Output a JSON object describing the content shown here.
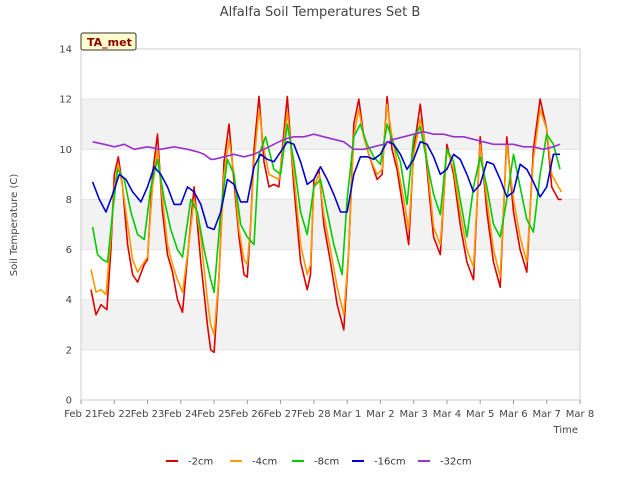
{
  "chart_data": {
    "type": "line",
    "title": "Alfalfa Soil Temperatures Set B",
    "xlabel": "Time",
    "ylabel": "Soil Temperature (C)",
    "badge": "TA_met",
    "ylim": [
      0,
      14
    ],
    "yticks": [
      0,
      2,
      4,
      6,
      8,
      10,
      12,
      14
    ],
    "xlim": [
      0,
      15
    ],
    "xticks": [
      {
        "day": 0,
        "label": "Feb 21"
      },
      {
        "day": 1,
        "label": "Feb 22"
      },
      {
        "day": 2,
        "label": "Feb 23"
      },
      {
        "day": 3,
        "label": "Feb 24"
      },
      {
        "day": 4,
        "label": "Feb 25"
      },
      {
        "day": 5,
        "label": "Feb 26"
      },
      {
        "day": 6,
        "label": "Feb 27"
      },
      {
        "day": 7,
        "label": "Feb 28"
      },
      {
        "day": 8,
        "label": "Mar 1"
      },
      {
        "day": 9,
        "label": "Mar 2"
      },
      {
        "day": 10,
        "label": "Mar 3"
      },
      {
        "day": 11,
        "label": "Mar 4"
      },
      {
        "day": 12,
        "label": "Mar 5"
      },
      {
        "day": 13,
        "label": "Mar 6"
      },
      {
        "day": 14,
        "label": "Mar 7"
      },
      {
        "day": 15,
        "label": "Mar 8"
      }
    ],
    "grid": true,
    "legend_position": "bottom",
    "series": [
      {
        "name": "-2cm",
        "color": "#dd0000",
        "x": [
          0.3,
          0.45,
          0.6,
          0.78,
          0.9,
          1.0,
          1.12,
          1.25,
          1.4,
          1.55,
          1.7,
          1.9,
          2.0,
          2.15,
          2.3,
          2.45,
          2.6,
          2.75,
          2.9,
          3.05,
          3.2,
          3.4,
          3.6,
          3.8,
          3.9,
          4.0,
          4.15,
          4.3,
          4.45,
          4.6,
          4.75,
          4.9,
          5.0,
          5.1,
          5.2,
          5.35,
          5.5,
          5.65,
          5.8,
          5.95,
          6.05,
          6.2,
          6.4,
          6.6,
          6.8,
          6.9,
          7.0,
          7.15,
          7.3,
          7.5,
          7.7,
          7.9,
          8.05,
          8.2,
          8.35,
          8.5,
          8.65,
          8.8,
          8.9,
          9.05,
          9.2,
          9.35,
          9.5,
          9.7,
          9.85,
          10.0,
          10.2,
          10.35,
          10.5,
          10.6,
          10.8,
          11.0,
          11.2,
          11.4,
          11.6,
          11.8,
          12.0,
          12.2,
          12.4,
          12.6,
          12.8,
          13.0,
          13.2,
          13.4,
          13.6,
          13.8,
          14.0,
          14.15,
          14.35,
          14.45
        ],
        "values": [
          4.4,
          3.4,
          3.8,
          3.6,
          6.0,
          9.0,
          9.7,
          8.5,
          6.2,
          5.0,
          4.7,
          5.4,
          5.6,
          9.0,
          10.6,
          7.5,
          5.8,
          5.1,
          4.0,
          3.5,
          5.7,
          8.5,
          5.5,
          3.0,
          2.0,
          1.9,
          5.0,
          9.5,
          11.0,
          8.7,
          6.5,
          5.0,
          4.9,
          7.0,
          10.0,
          12.1,
          9.5,
          8.5,
          8.6,
          8.5,
          10.0,
          12.1,
          8.5,
          5.5,
          4.4,
          5.0,
          8.8,
          9.2,
          7.0,
          5.5,
          3.8,
          2.8,
          6.0,
          11.0,
          12.0,
          10.5,
          9.8,
          9.2,
          8.8,
          9.0,
          12.1,
          10.0,
          9.2,
          7.5,
          6.2,
          10.0,
          11.8,
          10.0,
          7.8,
          6.5,
          5.8,
          10.2,
          9.0,
          7.0,
          5.5,
          4.8,
          10.5,
          7.5,
          5.5,
          4.5,
          10.5,
          7.5,
          6.0,
          5.1,
          10.0,
          12.0,
          10.8,
          8.5,
          8.0,
          8.0
        ]
      },
      {
        "name": "-4cm",
        "color": "#ff9900",
        "x": [
          0.3,
          0.45,
          0.6,
          0.75,
          0.9,
          1.0,
          1.12,
          1.25,
          1.4,
          1.55,
          1.7,
          1.9,
          2.0,
          2.15,
          2.3,
          2.45,
          2.6,
          2.75,
          2.9,
          3.05,
          3.2,
          3.4,
          3.6,
          3.8,
          3.9,
          4.0,
          4.15,
          4.3,
          4.45,
          4.6,
          4.75,
          4.9,
          5.0,
          5.1,
          5.2,
          5.35,
          5.5,
          5.65,
          5.8,
          5.95,
          6.05,
          6.2,
          6.4,
          6.6,
          6.8,
          6.9,
          7.0,
          7.15,
          7.3,
          7.5,
          7.7,
          7.9,
          8.05,
          8.2,
          8.35,
          8.5,
          8.65,
          8.8,
          8.9,
          9.05,
          9.2,
          9.35,
          9.5,
          9.7,
          9.85,
          10.0,
          10.2,
          10.35,
          10.5,
          10.6,
          10.8,
          11.0,
          11.2,
          11.4,
          11.6,
          11.8,
          12.0,
          12.2,
          12.4,
          12.6,
          12.8,
          13.0,
          13.2,
          13.4,
          13.6,
          13.8,
          14.0,
          14.15,
          14.35,
          14.45
        ],
        "values": [
          5.2,
          4.3,
          4.4,
          4.2,
          6.5,
          8.5,
          9.4,
          8.5,
          7.0,
          5.6,
          5.1,
          5.5,
          5.7,
          8.5,
          10.0,
          8.0,
          6.2,
          5.4,
          4.8,
          4.3,
          5.8,
          8.0,
          6.5,
          4.0,
          3.0,
          2.6,
          5.0,
          9.0,
          10.4,
          9.0,
          6.8,
          5.6,
          5.4,
          7.0,
          9.5,
          11.6,
          10.0,
          9.0,
          8.9,
          8.8,
          9.8,
          11.5,
          9.0,
          6.2,
          5.0,
          5.4,
          8.5,
          9.0,
          7.4,
          6.0,
          4.5,
          3.4,
          6.0,
          10.5,
          11.6,
          10.5,
          9.8,
          9.3,
          9.0,
          9.2,
          11.8,
          10.5,
          9.5,
          8.0,
          6.8,
          9.8,
          11.2,
          10.2,
          8.2,
          6.9,
          6.2,
          10.0,
          9.2,
          7.5,
          6.0,
          5.3,
          10.2,
          8.0,
          6.0,
          4.9,
          10.2,
          8.0,
          6.5,
          5.5,
          9.6,
          11.6,
          10.8,
          9.0,
          8.5,
          8.3
        ]
      },
      {
        "name": "-8cm",
        "color": "#00cc00",
        "x": [
          0.35,
          0.5,
          0.65,
          0.8,
          0.95,
          1.1,
          1.3,
          1.5,
          1.7,
          1.9,
          2.1,
          2.3,
          2.5,
          2.7,
          2.9,
          3.05,
          3.3,
          3.5,
          3.7,
          3.9,
          4.0,
          4.2,
          4.4,
          4.6,
          4.8,
          5.0,
          5.2,
          5.35,
          5.55,
          5.8,
          6.0,
          6.2,
          6.4,
          6.6,
          6.8,
          7.0,
          7.2,
          7.4,
          7.6,
          7.85,
          8.0,
          8.2,
          8.4,
          8.6,
          8.8,
          9.0,
          9.2,
          9.4,
          9.6,
          9.8,
          10.0,
          10.2,
          10.4,
          10.6,
          10.8,
          11.0,
          11.2,
          11.4,
          11.6,
          11.8,
          12.0,
          12.2,
          12.4,
          12.6,
          12.8,
          13.0,
          13.2,
          13.4,
          13.6,
          13.8,
          14.0,
          14.2,
          14.4
        ],
        "values": [
          6.9,
          5.8,
          5.6,
          5.5,
          7.5,
          9.2,
          8.8,
          7.5,
          6.6,
          6.4,
          8.5,
          9.6,
          8.0,
          6.8,
          6.0,
          5.7,
          8.0,
          7.5,
          6.0,
          4.8,
          4.3,
          7.5,
          9.6,
          9.0,
          7.0,
          6.5,
          6.2,
          9.8,
          10.5,
          9.2,
          9.0,
          11.0,
          9.5,
          7.5,
          6.6,
          8.5,
          8.8,
          7.5,
          6.2,
          5.0,
          8.0,
          10.5,
          11.0,
          10.2,
          9.7,
          9.4,
          11.0,
          10.2,
          9.5,
          7.8,
          10.5,
          10.9,
          9.5,
          8.2,
          7.4,
          10.0,
          9.5,
          8.0,
          6.5,
          8.5,
          9.7,
          8.5,
          7.0,
          6.5,
          8.0,
          9.8,
          8.5,
          7.2,
          6.7,
          9.0,
          10.6,
          10.2,
          9.2
        ]
      },
      {
        "name": "-16cm",
        "color": "#0000cc",
        "x": [
          0.35,
          0.55,
          0.75,
          0.95,
          1.15,
          1.35,
          1.55,
          1.8,
          2.0,
          2.2,
          2.4,
          2.6,
          2.8,
          3.0,
          3.2,
          3.4,
          3.6,
          3.8,
          4.0,
          4.2,
          4.4,
          4.6,
          4.8,
          5.0,
          5.2,
          5.4,
          5.6,
          5.8,
          6.0,
          6.2,
          6.4,
          6.6,
          6.8,
          7.0,
          7.2,
          7.4,
          7.6,
          7.8,
          8.0,
          8.2,
          8.4,
          8.6,
          8.8,
          9.0,
          9.2,
          9.4,
          9.6,
          9.8,
          10.0,
          10.2,
          10.4,
          10.6,
          10.8,
          11.0,
          11.2,
          11.4,
          11.6,
          11.8,
          12.0,
          12.2,
          12.4,
          12.6,
          12.8,
          13.0,
          13.2,
          13.4,
          13.6,
          13.8,
          14.0,
          14.2,
          14.4
        ],
        "values": [
          8.7,
          8.0,
          7.5,
          8.2,
          9.0,
          8.8,
          8.3,
          7.9,
          8.5,
          9.3,
          9.0,
          8.5,
          7.8,
          7.8,
          8.5,
          8.3,
          7.8,
          6.9,
          6.8,
          7.5,
          8.8,
          8.6,
          7.9,
          7.9,
          9.3,
          9.8,
          9.6,
          9.5,
          9.9,
          10.3,
          10.2,
          9.5,
          8.6,
          8.8,
          9.3,
          8.8,
          8.2,
          7.5,
          7.5,
          9.0,
          9.7,
          9.7,
          9.6,
          9.8,
          10.3,
          10.2,
          9.8,
          9.2,
          9.6,
          10.3,
          10.2,
          9.7,
          9.0,
          9.2,
          9.8,
          9.6,
          9.0,
          8.3,
          8.6,
          9.5,
          9.4,
          8.8,
          8.1,
          8.3,
          9.4,
          9.2,
          8.7,
          8.1,
          8.5,
          9.8,
          9.8
        ]
      },
      {
        "name": "-32cm",
        "color": "#9933cc",
        "x": [
          0.35,
          0.7,
          1.0,
          1.3,
          1.6,
          2.0,
          2.4,
          2.8,
          3.2,
          3.5,
          3.7,
          3.9,
          4.0,
          4.3,
          4.6,
          4.9,
          5.2,
          5.5,
          5.8,
          6.1,
          6.4,
          6.7,
          7.0,
          7.3,
          7.6,
          7.9,
          8.2,
          8.5,
          8.8,
          9.1,
          9.4,
          9.7,
          10.0,
          10.3,
          10.6,
          10.9,
          11.2,
          11.5,
          11.8,
          12.1,
          12.4,
          12.7,
          13.0,
          13.3,
          13.6,
          13.9,
          14.2,
          14.4
        ],
        "values": [
          10.3,
          10.2,
          10.1,
          10.2,
          10.0,
          10.1,
          10.0,
          10.1,
          10.0,
          9.9,
          9.8,
          9.6,
          9.6,
          9.7,
          9.8,
          9.7,
          9.8,
          10.0,
          10.2,
          10.4,
          10.5,
          10.5,
          10.6,
          10.5,
          10.4,
          10.3,
          10.0,
          10.0,
          10.1,
          10.2,
          10.4,
          10.5,
          10.6,
          10.7,
          10.6,
          10.6,
          10.5,
          10.5,
          10.4,
          10.3,
          10.2,
          10.2,
          10.2,
          10.1,
          10.1,
          10.0,
          10.1,
          10.2
        ]
      }
    ]
  }
}
